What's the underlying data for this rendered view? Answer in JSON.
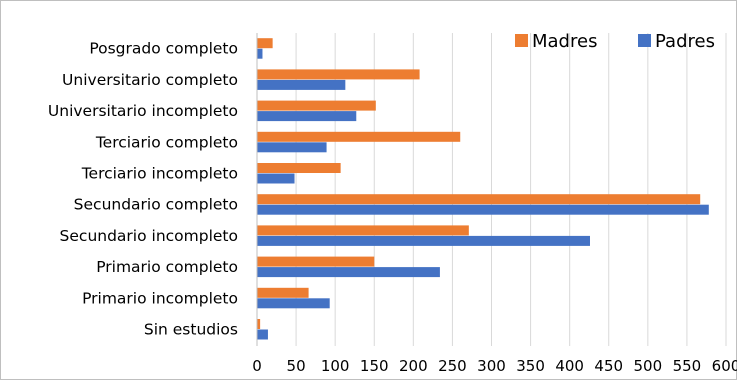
{
  "chart_data": {
    "type": "bar",
    "orientation": "horizontal",
    "categories": [
      "Posgrado completo",
      "Universitario completo",
      "Universitario incompleto",
      "Terciario completo",
      "Terciario incompleto",
      "Secundario completo",
      "Secundario incompleto",
      "Primario completo",
      "Primario incompleto",
      "Sin estudios"
    ],
    "series": [
      {
        "name": "Madres",
        "color": "#ED7D31",
        "values": [
          20,
          208,
          152,
          260,
          107,
          567,
          271,
          150,
          66,
          4
        ]
      },
      {
        "name": "Padres",
        "color": "#4472C4",
        "values": [
          7,
          113,
          127,
          89,
          48,
          578,
          426,
          234,
          93,
          14
        ]
      }
    ],
    "xlim": [
      0,
      600
    ],
    "xticks": [
      0,
      50,
      100,
      150,
      200,
      250,
      300,
      350,
      400,
      450,
      500,
      550,
      600
    ],
    "grid": "vertical",
    "legend_position": "top-right"
  }
}
